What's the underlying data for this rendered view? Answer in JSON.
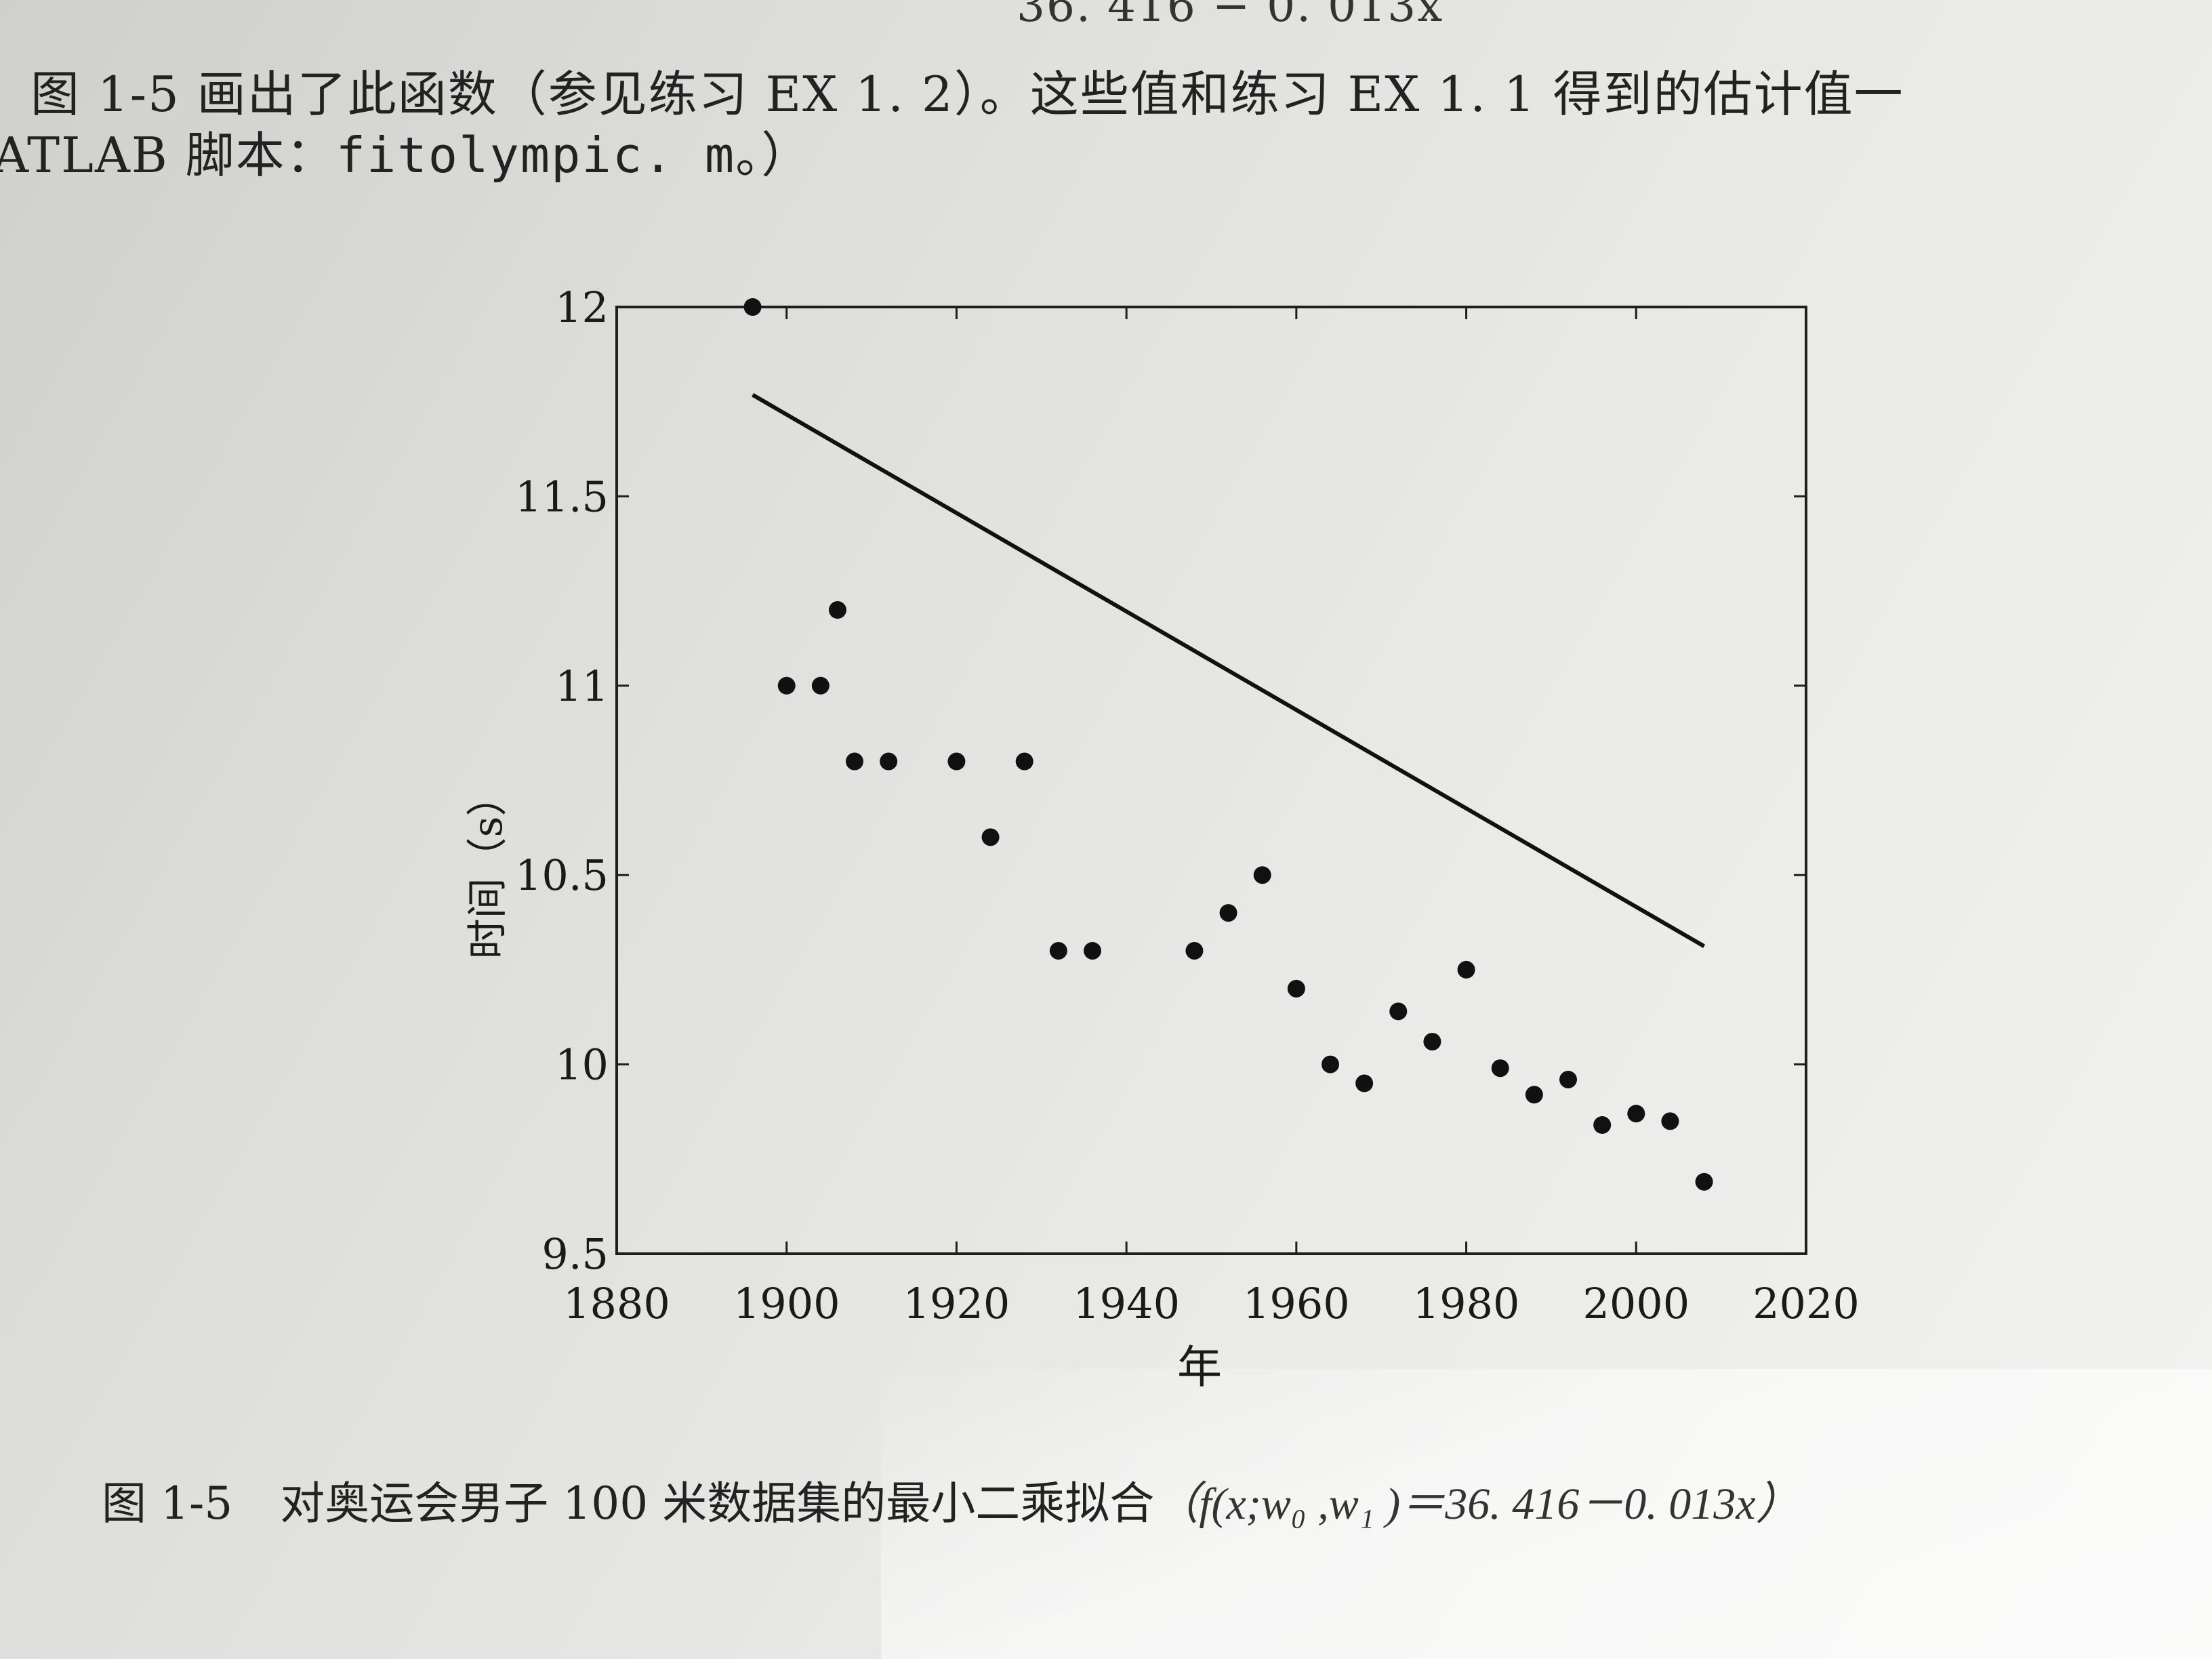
{
  "text": {
    "top_cut": "36. 416 − 0. 013x",
    "line1": "图 1-5 画出了此函数（参见练习 EX 1. 2）。这些值和练习 EX 1. 1 得到的估计值一",
    "line2_prefix": "ATLAB 脚本：",
    "line2_code": "fitolympic. m",
    "line2_suffix": "。）",
    "caption_number": "图 1-5",
    "caption_text": "对奥运会男子 100 米数据集的最小二乘拟合",
    "caption_formula": "（f(x;w₀ ,w₁ )＝36. 416－0. 013x）"
  },
  "chart_data": {
    "type": "scatter",
    "xlabel": "年",
    "ylabel": "时间（s）",
    "xlim": [
      1880,
      2020
    ],
    "ylim": [
      9.5,
      12
    ],
    "xticks": [
      "1880",
      "1900",
      "1920",
      "1940",
      "1960",
      "1980",
      "2000",
      "2020"
    ],
    "yticks": [
      "9.5",
      "10",
      "10.5",
      "11",
      "11.5",
      "12"
    ],
    "points": [
      [
        1896,
        12.0
      ],
      [
        1900,
        11.0
      ],
      [
        1904,
        11.0
      ],
      [
        1906,
        11.2
      ],
      [
        1908,
        10.8
      ],
      [
        1912,
        10.8
      ],
      [
        1920,
        10.8
      ],
      [
        1924,
        10.6
      ],
      [
        1928,
        10.8
      ],
      [
        1932,
        10.3
      ],
      [
        1936,
        10.3
      ],
      [
        1948,
        10.3
      ],
      [
        1952,
        10.4
      ],
      [
        1956,
        10.5
      ],
      [
        1960,
        10.2
      ],
      [
        1964,
        10.0
      ],
      [
        1968,
        9.95
      ],
      [
        1972,
        10.14
      ],
      [
        1976,
        10.06
      ],
      [
        1980,
        10.25
      ],
      [
        1984,
        9.99
      ],
      [
        1988,
        9.92
      ],
      [
        1992,
        9.96
      ],
      [
        1996,
        9.84
      ],
      [
        2000,
        9.87
      ],
      [
        2004,
        9.85
      ],
      [
        2008,
        9.69
      ]
    ],
    "fit_line": {
      "intercept": 36.416,
      "slope": -0.013,
      "x_range": [
        1896,
        2008
      ]
    },
    "grid": false
  }
}
